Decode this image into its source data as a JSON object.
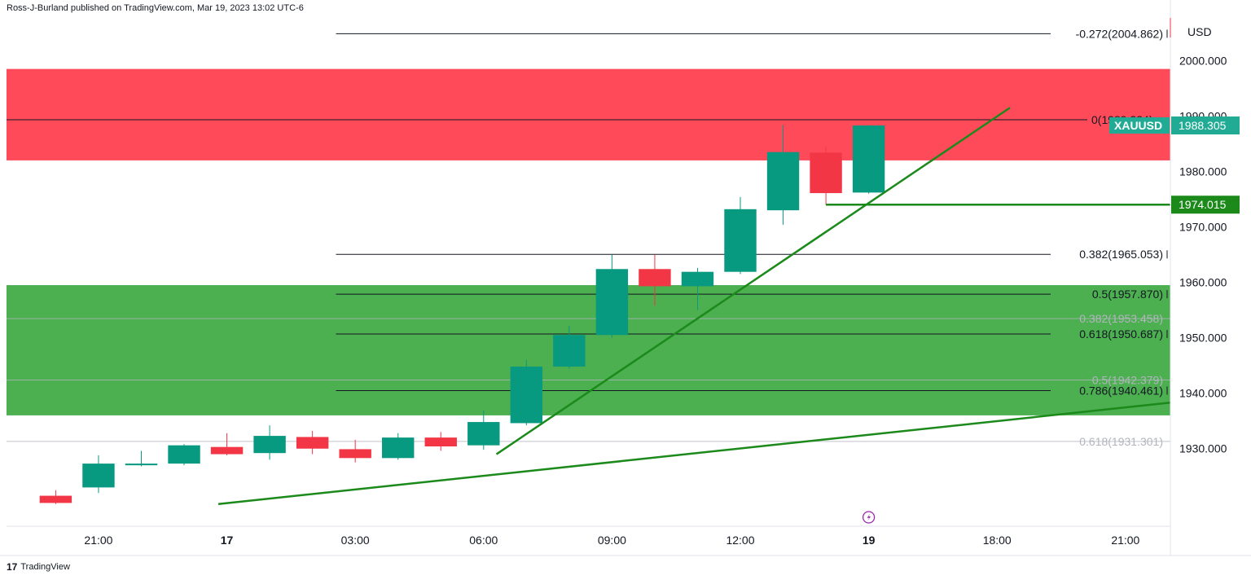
{
  "header": {
    "published": "Ross-J-Burland published on TradingView.com, Mar 19, 2023 13:02 UTC-6"
  },
  "footer": {
    "logo": "17",
    "brand": "TradingView"
  },
  "colors": {
    "up": "#089981",
    "down": "#f23645",
    "resistance_zone": "#ff4a5a",
    "support_zone": "#4caf50",
    "trendline": "#1b8a1b",
    "fib_line": "#131722",
    "fib_faint": "#b2b5be",
    "badge": "#22ab94"
  },
  "chart_data": {
    "type": "candlestick",
    "symbol": "XAUUSD",
    "currency": "USD",
    "ylim": [
      1916,
      2008
    ],
    "y_ticks": [
      {
        "value": 2000,
        "label": "2000.000"
      },
      {
        "value": 1990,
        "label": "1990.000"
      },
      {
        "value": 1980,
        "label": "1980.000"
      },
      {
        "value": 1970,
        "label": "1970.000"
      },
      {
        "value": 1960,
        "label": "1960.000"
      },
      {
        "value": 1950,
        "label": "1950.000"
      },
      {
        "value": 1940,
        "label": "1940.000"
      },
      {
        "value": 1930,
        "label": "1930.000"
      }
    ],
    "x_range": [
      -2.15,
      25.05
    ],
    "x_ticks": [
      {
        "hour": 0,
        "label": "21:00",
        "bold": false
      },
      {
        "hour": 3,
        "label": "17",
        "bold": true
      },
      {
        "hour": 6,
        "label": "03:00",
        "bold": false
      },
      {
        "hour": 9,
        "label": "06:00",
        "bold": false
      },
      {
        "hour": 12,
        "label": "09:00",
        "bold": false
      },
      {
        "hour": 15,
        "label": "12:00",
        "bold": false
      },
      {
        "hour": 18,
        "label": "19",
        "bold": true
      },
      {
        "hour": 21,
        "label": "18:00",
        "bold": false
      },
      {
        "hour": 24,
        "label": "21:00",
        "bold": false
      }
    ],
    "candles": [
      {
        "t": -1,
        "o": 1921.5,
        "h": 1922.5,
        "l": 1920.0,
        "c": 1920.2
      },
      {
        "t": 0,
        "o": 1923.0,
        "h": 1928.8,
        "l": 1922.0,
        "c": 1927.3
      },
      {
        "t": 1,
        "o": 1927.0,
        "h": 1929.6,
        "l": 1926.8,
        "c": 1927.3
      },
      {
        "t": 2,
        "o": 1927.3,
        "h": 1930.8,
        "l": 1927.0,
        "c": 1930.6
      },
      {
        "t": 3,
        "o": 1930.3,
        "h": 1932.8,
        "l": 1928.8,
        "c": 1929.0
      },
      {
        "t": 4,
        "o": 1929.2,
        "h": 1934.2,
        "l": 1928.0,
        "c": 1932.3
      },
      {
        "t": 5,
        "o": 1932.1,
        "h": 1933.2,
        "l": 1929.0,
        "c": 1930.0
      },
      {
        "t": 6,
        "o": 1929.9,
        "h": 1931.6,
        "l": 1927.5,
        "c": 1928.3
      },
      {
        "t": 7,
        "o": 1928.3,
        "h": 1932.8,
        "l": 1928.0,
        "c": 1932.0
      },
      {
        "t": 8,
        "o": 1932.0,
        "h": 1933.0,
        "l": 1929.6,
        "c": 1930.4
      },
      {
        "t": 9,
        "o": 1930.6,
        "h": 1936.9,
        "l": 1929.8,
        "c": 1934.8
      },
      {
        "t": 10,
        "o": 1934.6,
        "h": 1946.0,
        "l": 1934.2,
        "c": 1944.8
      },
      {
        "t": 11,
        "o": 1944.8,
        "h": 1952.2,
        "l": 1944.4,
        "c": 1950.5
      },
      {
        "t": 12,
        "o": 1950.5,
        "h": 1965.0,
        "l": 1950.0,
        "c": 1962.4
      },
      {
        "t": 13,
        "o": 1962.4,
        "h": 1965.0,
        "l": 1955.8,
        "c": 1959.3
      },
      {
        "t": 14,
        "o": 1959.3,
        "h": 1962.6,
        "l": 1955.0,
        "c": 1961.9
      },
      {
        "t": 15,
        "o": 1961.9,
        "h": 1975.4,
        "l": 1961.5,
        "c": 1973.2
      },
      {
        "t": 16,
        "o": 1973.0,
        "h": 1988.4,
        "l": 1970.4,
        "c": 1983.5
      },
      {
        "t": 17,
        "o": 1983.4,
        "h": 1984.4,
        "l": 1974.0,
        "c": 1976.1
      },
      {
        "t": 18,
        "o": 1976.2,
        "h": 1988.4,
        "l": 1976.0,
        "c": 1988.3
      }
    ],
    "zones": [
      {
        "name": "resistance",
        "y_low": 1982.0,
        "y_high": 1998.5
      },
      {
        "name": "support",
        "y_low": 1936.0,
        "y_high": 1959.5
      }
    ],
    "fib_levels": [
      {
        "label": "-0.272(2004.862)",
        "value": 2004.862,
        "faint": false
      },
      {
        "label": "0(1989.334)",
        "value": 1989.334,
        "faint": false
      },
      {
        "label": "0.382(1965.053)",
        "value": 1965.053,
        "faint": false
      },
      {
        "label": "0.5(1957.870)",
        "value": 1957.87,
        "faint": false
      },
      {
        "label": "0.618(1950.687)",
        "value": 1950.687,
        "faint": false
      },
      {
        "label": "0.786(1940.461)",
        "value": 1940.461,
        "faint": false
      },
      {
        "label": "0.382(1953.458)",
        "value": 1953.458,
        "faint": true
      },
      {
        "label": "0.5(1942.379)",
        "value": 1942.379,
        "faint": true
      },
      {
        "label": "0.618(1931.301)",
        "value": 1931.301,
        "faint": true
      }
    ],
    "trendlines": [
      {
        "name": "steep",
        "x1": 9.3,
        "y1": 1929.0,
        "x2": 21.3,
        "y2": 1991.5
      },
      {
        "name": "long",
        "x1": 2.8,
        "y1": 1920.0,
        "x2": 25.05,
        "y2": 1938.3
      }
    ],
    "horizontal_level": {
      "label": "1974.015",
      "value": 1974.015,
      "x_start": 17.0
    },
    "price_badge": {
      "symbol": "XAUUSD",
      "value": "1988.305",
      "price": 1988.305
    }
  }
}
